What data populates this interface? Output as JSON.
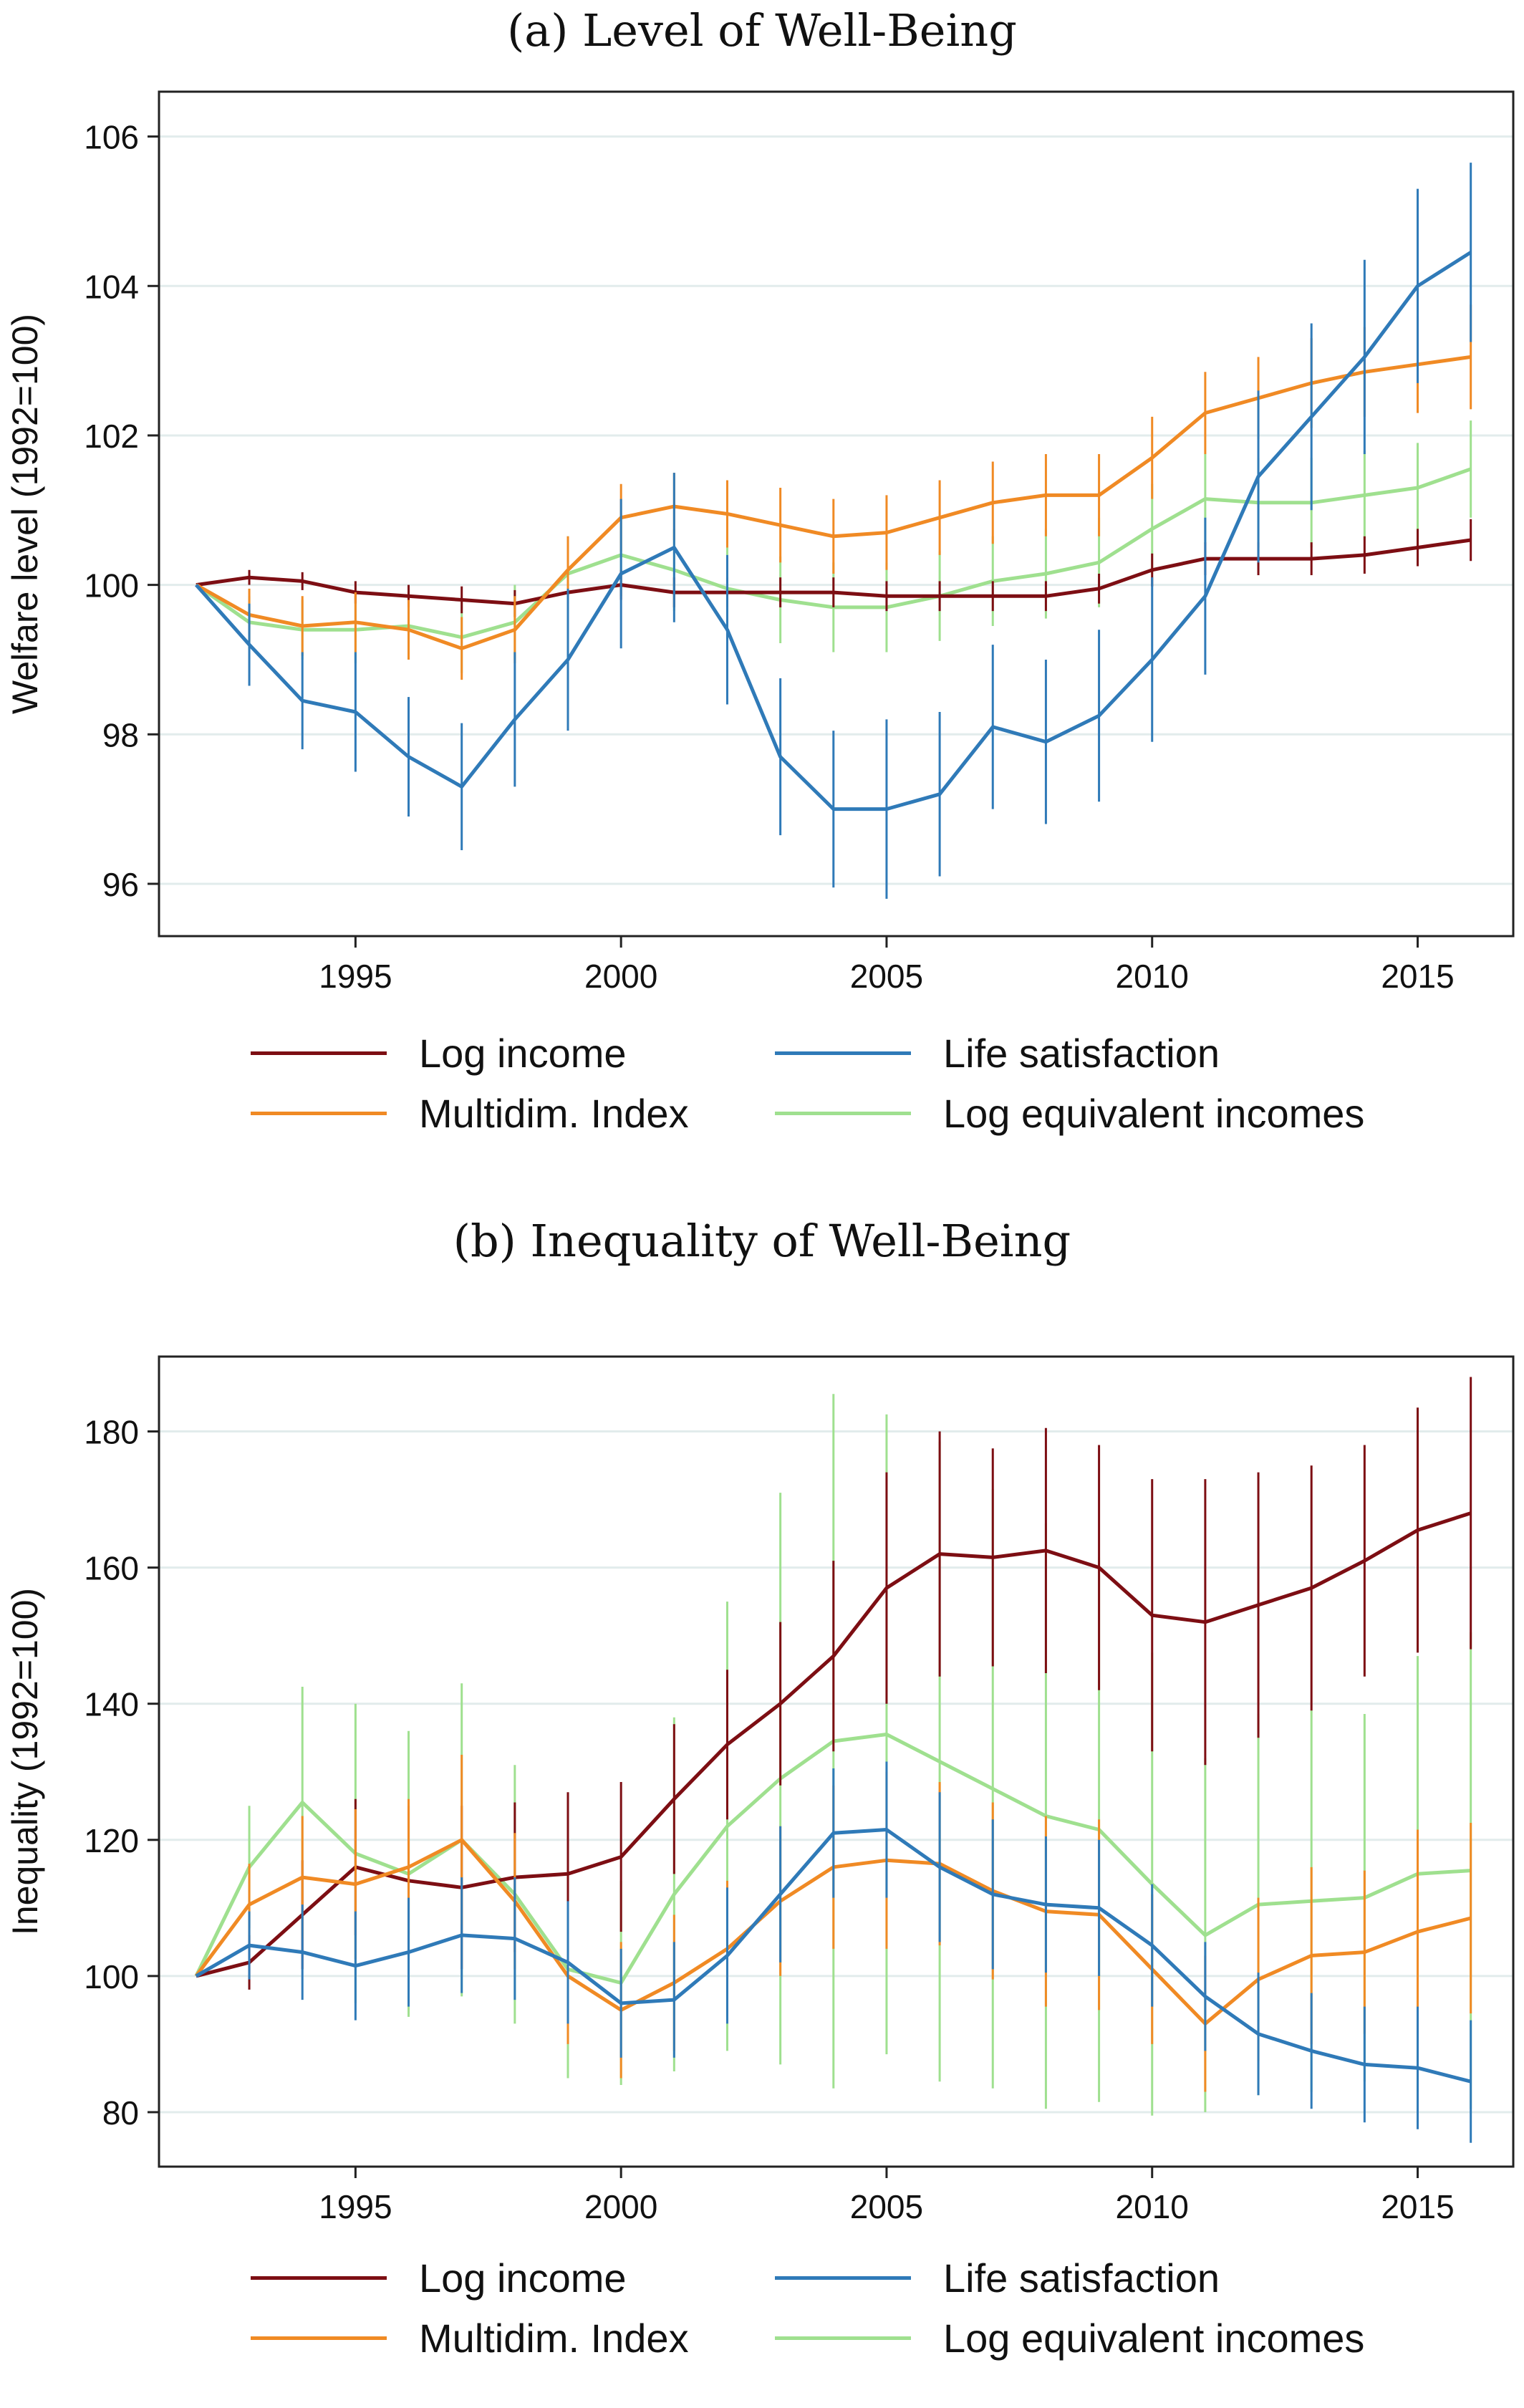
{
  "chart_data": [
    {
      "type": "line",
      "title": "(a) Level of Well-Being",
      "xlabel": "",
      "ylabel": "Welfare level (1992=100)",
      "xlim": [
        1991.3,
        2016.8
      ],
      "ylim": [
        95.3,
        106.6
      ],
      "xticks": [
        1995,
        2000,
        2005,
        2010,
        2015
      ],
      "yticks": [
        96,
        98,
        100,
        102,
        104,
        106
      ],
      "grid": true,
      "legend_position": "bottom",
      "x": [
        1992,
        1993,
        1994,
        1995,
        1996,
        1997,
        1998,
        1999,
        2000,
        2001,
        2002,
        2003,
        2004,
        2005,
        2006,
        2007,
        2008,
        2009,
        2010,
        2011,
        2012,
        2013,
        2014,
        2015,
        2016
      ],
      "series": [
        {
          "name": "Log income",
          "color": "#7d0e13",
          "values": [
            100.0,
            100.1,
            100.05,
            99.9,
            99.85,
            99.8,
            99.75,
            99.9,
            100.0,
            99.9,
            99.9,
            99.9,
            99.9,
            99.85,
            99.85,
            99.85,
            99.85,
            99.95,
            100.2,
            100.35,
            100.35,
            100.35,
            100.4,
            100.5,
            100.6
          ],
          "ci": [
            0,
            0.1,
            0.12,
            0.15,
            0.15,
            0.18,
            0.18,
            0.18,
            0.2,
            0.2,
            0.2,
            0.2,
            0.2,
            0.2,
            0.2,
            0.2,
            0.2,
            0.2,
            0.22,
            0.22,
            0.22,
            0.22,
            0.25,
            0.25,
            0.28
          ]
        },
        {
          "name": "Multidim. Index",
          "color": "#f08a24",
          "values": [
            100.0,
            99.6,
            99.45,
            99.5,
            99.4,
            99.15,
            99.4,
            100.2,
            100.9,
            101.05,
            100.95,
            100.8,
            100.65,
            100.7,
            100.9,
            101.1,
            101.2,
            101.2,
            101.7,
            102.3,
            102.5,
            102.7,
            102.85,
            102.95,
            103.05
          ],
          "ci": [
            0,
            0.35,
            0.4,
            0.4,
            0.4,
            0.42,
            0.45,
            0.45,
            0.45,
            0.45,
            0.45,
            0.5,
            0.5,
            0.5,
            0.5,
            0.55,
            0.55,
            0.55,
            0.55,
            0.55,
            0.55,
            0.6,
            0.6,
            0.65,
            0.7
          ]
        },
        {
          "name": "Life satisfaction",
          "color": "#2f7ab8",
          "values": [
            100.0,
            99.2,
            98.45,
            98.3,
            97.7,
            97.3,
            98.2,
            99.0,
            100.15,
            100.5,
            99.4,
            97.7,
            97.0,
            97.0,
            97.2,
            98.1,
            97.9,
            98.25,
            99.0,
            99.85,
            101.45,
            102.25,
            103.05,
            104.0,
            104.45
          ],
          "ci": [
            0,
            0.55,
            0.65,
            0.8,
            0.8,
            0.85,
            0.9,
            0.95,
            1.0,
            1.0,
            1.0,
            1.05,
            1.05,
            1.2,
            1.1,
            1.1,
            1.1,
            1.15,
            1.1,
            1.05,
            1.15,
            1.25,
            1.3,
            1.3,
            1.2
          ]
        },
        {
          "name": "Log equivalent incomes",
          "color": "#9fe08f",
          "values": [
            100.0,
            99.5,
            99.4,
            99.4,
            99.45,
            99.3,
            99.5,
            100.15,
            100.4,
            100.2,
            99.95,
            99.8,
            99.7,
            99.7,
            99.85,
            100.05,
            100.15,
            100.3,
            100.75,
            101.15,
            101.1,
            101.1,
            101.2,
            101.3,
            101.55
          ],
          "ci": [
            0,
            0.35,
            0.4,
            0.45,
            0.45,
            0.48,
            0.5,
            0.5,
            0.55,
            0.55,
            0.55,
            0.58,
            0.6,
            0.6,
            0.6,
            0.6,
            0.6,
            0.6,
            0.6,
            0.6,
            0.6,
            0.6,
            0.6,
            0.6,
            0.65
          ]
        }
      ]
    },
    {
      "type": "line",
      "title": "(b) Inequality of Well-Being",
      "xlabel": "",
      "ylabel": "Inequality (1992=100)",
      "xlim": [
        1991.3,
        2016.8
      ],
      "ylim": [
        72,
        191
      ],
      "xticks": [
        1995,
        2000,
        2005,
        2010,
        2015
      ],
      "yticks": [
        80,
        100,
        120,
        140,
        160,
        180
      ],
      "grid": true,
      "legend_position": "bottom",
      "x": [
        1992,
        1993,
        1994,
        1995,
        1996,
        1997,
        1998,
        1999,
        2000,
        2001,
        2002,
        2003,
        2004,
        2005,
        2006,
        2007,
        2008,
        2009,
        2010,
        2011,
        2012,
        2013,
        2014,
        2015,
        2016
      ],
      "series": [
        {
          "name": "Log income",
          "color": "#7d0e13",
          "values": [
            100,
            102,
            109,
            116,
            114,
            113,
            114.5,
            115,
            117.5,
            126,
            134,
            140,
            147,
            157,
            162,
            161.5,
            162.5,
            160,
            153,
            152,
            154.5,
            157,
            161,
            165.5,
            168
          ],
          "ci": [
            0,
            4,
            8,
            10,
            11,
            12,
            11,
            12,
            11,
            11,
            11,
            12,
            14,
            17,
            18,
            16,
            18,
            18,
            20,
            21,
            19.5,
            18,
            17,
            18,
            20
          ]
        },
        {
          "name": "Multidim. Index",
          "color": "#f08a24",
          "values": [
            100,
            110.5,
            114.5,
            113.5,
            116,
            120,
            111,
            100,
            95,
            99,
            104,
            111,
            116,
            117,
            116.5,
            112.5,
            109.5,
            109,
            101,
            93,
            99.5,
            103,
            103.5,
            106.5,
            108.5
          ],
          "ci": [
            0,
            6,
            9,
            11,
            10,
            12.5,
            10,
            10,
            10,
            10,
            10,
            11,
            12,
            13,
            12,
            13,
            14,
            14,
            11,
            10,
            12,
            13,
            12,
            15,
            14
          ]
        },
        {
          "name": "Life satisfaction",
          "color": "#2f7ab8",
          "values": [
            100,
            104.5,
            103.5,
            101.5,
            103.5,
            106,
            105.5,
            102,
            96,
            96.5,
            103,
            112,
            121,
            121.5,
            116,
            112,
            110.5,
            110,
            104.5,
            97,
            91.5,
            89,
            87,
            86.5,
            84.5
          ],
          "ci": [
            0,
            5,
            7,
            8,
            8,
            8.5,
            9,
            9,
            8,
            8.5,
            10,
            10,
            9.5,
            10,
            11,
            11,
            10,
            10,
            9,
            8,
            9,
            8.5,
            8.5,
            9,
            9
          ]
        },
        {
          "name": "Log equivalent incomes",
          "color": "#9fe08f",
          "values": [
            100,
            116,
            125.5,
            118,
            115,
            120,
            112,
            101,
            99,
            112,
            122,
            129,
            134.5,
            135.5,
            131.5,
            127.5,
            123.5,
            121.5,
            113.5,
            106,
            110.5,
            111,
            111.5,
            115,
            115.5
          ],
          "ci": [
            0,
            9,
            17,
            22,
            21,
            23,
            19,
            16,
            15,
            26,
            33,
            42,
            51,
            47,
            47,
            44,
            43,
            40,
            34,
            26,
            28,
            28,
            27,
            32,
            35
          ]
        }
      ]
    }
  ]
}
